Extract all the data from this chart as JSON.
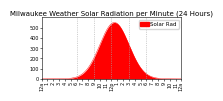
{
  "title": "Milwaukee Weather Solar Radiation per Minute (24 Hours)",
  "bg_color": "#ffffff",
  "plot_bg_color": "#ffffff",
  "fill_color": "#ff0000",
  "line_color": "#ff0000",
  "grid_color": "#aaaaaa",
  "legend_color": "#ff0000",
  "x_hours": 1440,
  "peak_minute": 750,
  "peak_value": 550,
  "sigma": 150,
  "ylim": [
    0,
    600
  ],
  "xlim": [
    0,
    1440
  ],
  "xtick_minutes": [
    0,
    60,
    120,
    180,
    240,
    300,
    360,
    420,
    480,
    540,
    600,
    660,
    720,
    780,
    840,
    900,
    960,
    1020,
    1080,
    1140,
    1200,
    1260,
    1320,
    1380,
    1440
  ],
  "xtick_labels": [
    "12a",
    "1",
    "2",
    "3",
    "4",
    "5",
    "6",
    "7",
    "8",
    "9",
    "10",
    "11",
    "12p",
    "1",
    "2",
    "3",
    "4",
    "5",
    "6",
    "7",
    "8",
    "9",
    "10",
    "11",
    "12a"
  ],
  "ytick_values": [
    0,
    100,
    200,
    300,
    400,
    500
  ],
  "vgrid_minutes": [
    360,
    540,
    720,
    900,
    1080
  ],
  "title_fontsize": 5,
  "tick_fontsize": 3.5,
  "legend_text": "Solar Rad",
  "legend_fontsize": 4
}
